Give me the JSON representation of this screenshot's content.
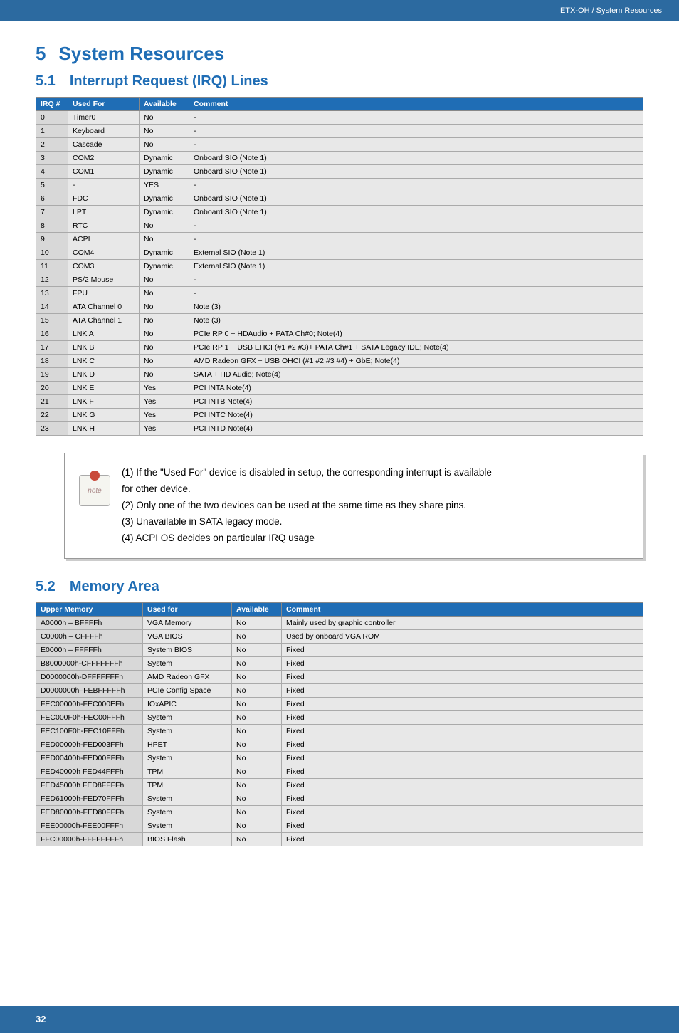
{
  "header": {
    "breadcrumb": "ETX-OH / System Resources"
  },
  "chapter": {
    "number": "5",
    "title": "System Resources"
  },
  "section1": {
    "number": "5.1",
    "title": "Interrupt Request (IRQ) Lines",
    "headers": {
      "irq": "IRQ #",
      "used": "Used For",
      "avail": "Available",
      "comment": "Comment"
    },
    "rows": [
      {
        "irq": "0",
        "used": "Timer0",
        "avail": "No",
        "comment": "-"
      },
      {
        "irq": "1",
        "used": "Keyboard",
        "avail": "No",
        "comment": "-"
      },
      {
        "irq": "2",
        "used": "Cascade",
        "avail": "No",
        "comment": "-"
      },
      {
        "irq": "3",
        "used": "COM2",
        "avail": "Dynamic",
        "comment": "Onboard SIO (Note 1)"
      },
      {
        "irq": "4",
        "used": "COM1",
        "avail": "Dynamic",
        "comment": "Onboard SIO (Note 1)"
      },
      {
        "irq": "5",
        "used": "-",
        "avail": "YES",
        "comment": "-"
      },
      {
        "irq": "6",
        "used": "FDC",
        "avail": "Dynamic",
        "comment": "Onboard SIO (Note 1)"
      },
      {
        "irq": "7",
        "used": "LPT",
        "avail": "Dynamic",
        "comment": "Onboard SIO (Note 1)"
      },
      {
        "irq": "8",
        "used": "RTC",
        "avail": "No",
        "comment": "-"
      },
      {
        "irq": "9",
        "used": "ACPI",
        "avail": "No",
        "comment": "-"
      },
      {
        "irq": "10",
        "used": "COM4",
        "avail": "Dynamic",
        "comment": "External SIO (Note 1)"
      },
      {
        "irq": "11",
        "used": "COM3",
        "avail": "Dynamic",
        "comment": "External SIO (Note 1)"
      },
      {
        "irq": "12",
        "used": "PS/2 Mouse",
        "avail": "No",
        "comment": "-"
      },
      {
        "irq": "13",
        "used": "FPU",
        "avail": "No",
        "comment": "-"
      },
      {
        "irq": "14",
        "used": "ATA Channel 0",
        "avail": "No",
        "comment": "Note (3)"
      },
      {
        "irq": "15",
        "used": "ATA Channel 1",
        "avail": "No",
        "comment": "Note (3)"
      },
      {
        "irq": "16",
        "used": "LNK A",
        "avail": "No",
        "comment": "PCIe RP 0 + HDAudio + PATA Ch#0; Note(4)"
      },
      {
        "irq": "17",
        "used": "LNK B",
        "avail": "No",
        "comment": "PCIe RP 1 + USB EHCI (#1 #2 #3)+ PATA Ch#1 + SATA Legacy IDE; Note(4)"
      },
      {
        "irq": "18",
        "used": "LNK C",
        "avail": "No",
        "comment": "AMD Radeon GFX + USB OHCI (#1 #2 #3 #4) + GbE; Note(4)"
      },
      {
        "irq": "19",
        "used": "LNK D",
        "avail": "No",
        "comment": "SATA + HD Audio; Note(4)"
      },
      {
        "irq": "20",
        "used": "LNK E",
        "avail": "Yes",
        "comment": "PCI INTA Note(4)"
      },
      {
        "irq": "21",
        "used": "LNK F",
        "avail": "Yes",
        "comment": "PCI INTB Note(4)"
      },
      {
        "irq": "22",
        "used": "LNK G",
        "avail": "Yes",
        "comment": "PCI INTC Note(4)"
      },
      {
        "irq": "23",
        "used": "LNK H",
        "avail": "Yes",
        "comment": "PCI INTD Note(4)"
      }
    ]
  },
  "notes": {
    "n1a": "(1) If the \"Used For\" device is disabled in setup, the corresponding interrupt is available",
    "n1b": "for other device.",
    "n2": "(2) Only one of the two devices can be used at the same time as they share pins.",
    "n3": "(3) Unavailable in SATA legacy mode.",
    "n4": "(4) ACPI OS decides on particular IRQ usage"
  },
  "section2": {
    "number": "5.2",
    "title": "Memory Area",
    "headers": {
      "upper": "Upper Memory",
      "used": "Used for",
      "avail": "Available",
      "comment": "Comment"
    },
    "rows": [
      {
        "upper": "A0000h – BFFFFh",
        "used": "VGA Memory",
        "avail": "No",
        "comment": "Mainly used by graphic controller"
      },
      {
        "upper": "C0000h – CFFFFh",
        "used": "VGA BIOS",
        "avail": "No",
        "comment": "Used by onboard VGA ROM"
      },
      {
        "upper": "E0000h – FFFFFh",
        "used": "System BIOS",
        "avail": "No",
        "comment": "Fixed"
      },
      {
        "upper": "B8000000h-CFFFFFFFh",
        "used": "System",
        "avail": "No",
        "comment": "Fixed"
      },
      {
        "upper": "D0000000h-DFFFFFFFh",
        "used": "AMD Radeon GFX",
        "avail": "No",
        "comment": "Fixed"
      },
      {
        "upper": "D0000000h–FEBFFFFFh",
        "used": "PCIe Config Space",
        "avail": "No",
        "comment": "Fixed"
      },
      {
        "upper": "FEC00000h-FEC000EFh",
        "used": "IOxAPIC",
        "avail": "No",
        "comment": "Fixed"
      },
      {
        "upper": "FEC000F0h-FEC00FFFh",
        "used": "System",
        "avail": "No",
        "comment": "Fixed"
      },
      {
        "upper": "FEC100F0h-FEC10FFFh",
        "used": "System",
        "avail": "No",
        "comment": "Fixed"
      },
      {
        "upper": "FED00000h-FED003FFh",
        "used": "HPET",
        "avail": "No",
        "comment": "Fixed"
      },
      {
        "upper": "FED00400h-FED00FFFh",
        "used": "System",
        "avail": "No",
        "comment": "Fixed"
      },
      {
        "upper": "FED40000h FED44FFFh",
        "used": "TPM",
        "avail": "No",
        "comment": "Fixed"
      },
      {
        "upper": "FED45000h FED8FFFFh",
        "used": "TPM",
        "avail": "No",
        "comment": "Fixed"
      },
      {
        "upper": "FED61000h-FED70FFFh",
        "used": "System",
        "avail": "No",
        "comment": "Fixed"
      },
      {
        "upper": "FED80000h-FED80FFFh",
        "used": "System",
        "avail": "No",
        "comment": "Fixed"
      },
      {
        "upper": "FEE00000h-FEE00FFFh",
        "used": "System",
        "avail": "No",
        "comment": "Fixed"
      },
      {
        "upper": "FFC00000h-FFFFFFFFh",
        "used": "BIOS Flash",
        "avail": "No",
        "comment": "Fixed"
      }
    ]
  },
  "footer": {
    "page": "32"
  }
}
